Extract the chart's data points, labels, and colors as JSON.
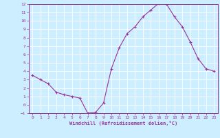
{
  "x": [
    0,
    1,
    2,
    3,
    4,
    5,
    6,
    7,
    8,
    9,
    10,
    11,
    12,
    13,
    14,
    15,
    16,
    17,
    18,
    19,
    20,
    21,
    22,
    23
  ],
  "y": [
    3.5,
    3.0,
    2.5,
    1.5,
    1.2,
    1.0,
    0.8,
    -1.0,
    -0.9,
    0.2,
    4.3,
    6.8,
    8.5,
    9.3,
    10.5,
    11.3,
    12.1,
    12.0,
    10.5,
    9.3,
    7.5,
    5.5,
    4.3,
    4.0
  ],
  "line_color": "#993399",
  "marker": "+",
  "marker_size": 3,
  "bg_color": "#cceeff",
  "grid_color": "#ffffff",
  "xlabel": "Windchill (Refroidissement éolien,°C)",
  "xlabel_color": "#993399",
  "tick_color": "#993399",
  "spine_color": "#993399",
  "ylim": [
    -1,
    12
  ],
  "xlim": [
    -0.5,
    23.5
  ],
  "yticks": [
    -1,
    0,
    1,
    2,
    3,
    4,
    5,
    6,
    7,
    8,
    9,
    10,
    11,
    12
  ],
  "xticks": [
    0,
    1,
    2,
    3,
    4,
    5,
    6,
    7,
    8,
    9,
    10,
    11,
    12,
    13,
    14,
    15,
    16,
    17,
    18,
    19,
    20,
    21,
    22,
    23
  ],
  "label_fontsize": 5.0,
  "tick_fontsize": 4.5
}
